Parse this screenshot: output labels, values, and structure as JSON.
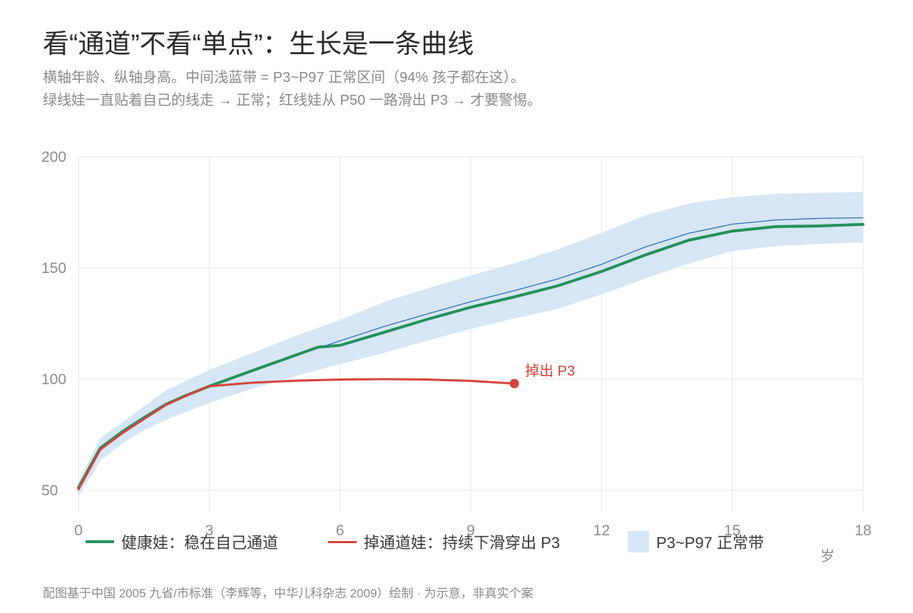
{
  "chart_data": {
    "type": "line",
    "title": "看“通道”不看“单点”：生长是一条曲线",
    "subtitle": [
      "横轴年龄、纵轴身高。中间浅蓝带 = P3~P97 正常区间（94% 孩子都在这）。",
      "绿线娃一直贴着自己的线走 → 正常；红线娃从 P50 一路滑出 P3 → 才要警惕。"
    ],
    "xlabel": "岁",
    "ylabel": "",
    "xlim": [
      0,
      18
    ],
    "ylim": [
      40,
      200
    ],
    "x_ticks": [
      0,
      3,
      6,
      9,
      12,
      15,
      18
    ],
    "y_ticks": [
      50,
      100,
      150,
      200
    ],
    "grid": true,
    "legend_position": "bottom",
    "band": {
      "name": "P3~P97 正常带",
      "color": "#d6e6f5",
      "x": [
        0,
        0.5,
        1,
        1.5,
        2,
        2.5,
        3,
        4,
        5,
        6,
        7,
        8,
        9,
        10,
        11,
        12,
        13,
        14,
        15,
        16,
        17,
        18
      ],
      "lower": [
        47.1,
        63.3,
        71.0,
        76.9,
        81.6,
        85.4,
        89.3,
        95.8,
        101.5,
        106.7,
        111.7,
        117.3,
        122.6,
        127.3,
        131.6,
        138.1,
        145.2,
        152.0,
        157.6,
        159.8,
        160.8,
        161.5
      ],
      "upper": [
        53.8,
        73.5,
        80.5,
        87.7,
        94.9,
        99.5,
        104.1,
        111.8,
        119.6,
        126.6,
        134.6,
        140.8,
        146.6,
        152.1,
        158.4,
        165.8,
        173.6,
        179.0,
        181.8,
        183.3,
        183.8,
        184.2
      ]
    },
    "series": [
      {
        "color": "#2f6fb3",
        "x": [
          0,
          0.5,
          1,
          1.5,
          2,
          2.5,
          3,
          4,
          5,
          6,
          7,
          8,
          9,
          10,
          11,
          12,
          13,
          14,
          15,
          16,
          17,
          18
        ],
        "y": [
          50.4,
          68.4,
          75.7,
          82.2,
          88.3,
          92.8,
          96.8,
          103.9,
          110.7,
          117.2,
          123.6,
          129.3,
          134.8,
          139.8,
          145.1,
          151.6,
          159.4,
          165.6,
          169.7,
          171.6,
          172.3,
          172.6
        ]
      },
      {
        "name": "健康娃：稳在自己通道",
        "color": "#24915a",
        "x": [
          0,
          0.5,
          1,
          1.5,
          2,
          2.5,
          3,
          4,
          5,
          5.5,
          6,
          7,
          8,
          9,
          10,
          11,
          12,
          13,
          14,
          15,
          16,
          17,
          18
        ],
        "y": [
          51.2,
          69.0,
          76.3,
          82.6,
          88.6,
          92.9,
          96.8,
          103.9,
          110.9,
          114.4,
          115.2,
          121.0,
          126.9,
          132.3,
          137.0,
          142.0,
          148.4,
          155.8,
          162.5,
          166.6,
          168.6,
          168.9,
          169.6
        ]
      },
      {
        "name": "掉通道娃：持续下滑穿出 P3",
        "color": "#d4433b",
        "x": [
          0,
          0.5,
          1,
          1.5,
          2,
          2.5,
          3,
          4,
          5,
          6,
          7,
          8,
          9,
          10
        ],
        "y": [
          50.4,
          68.3,
          75.6,
          82.0,
          88.3,
          92.8,
          96.8,
          98.4,
          99.3,
          99.8,
          100.0,
          99.8,
          99.2,
          98.0
        ]
      }
    ],
    "annotations": [
      {
        "text": "掉出 P3",
        "x": 10,
        "y": 98,
        "color": "#d4433b"
      }
    ],
    "source": "配图基于中国 2005 九省/市标准（李辉等，中华儿科杂志 2009）绘制 · 为示意，非真实个案"
  }
}
